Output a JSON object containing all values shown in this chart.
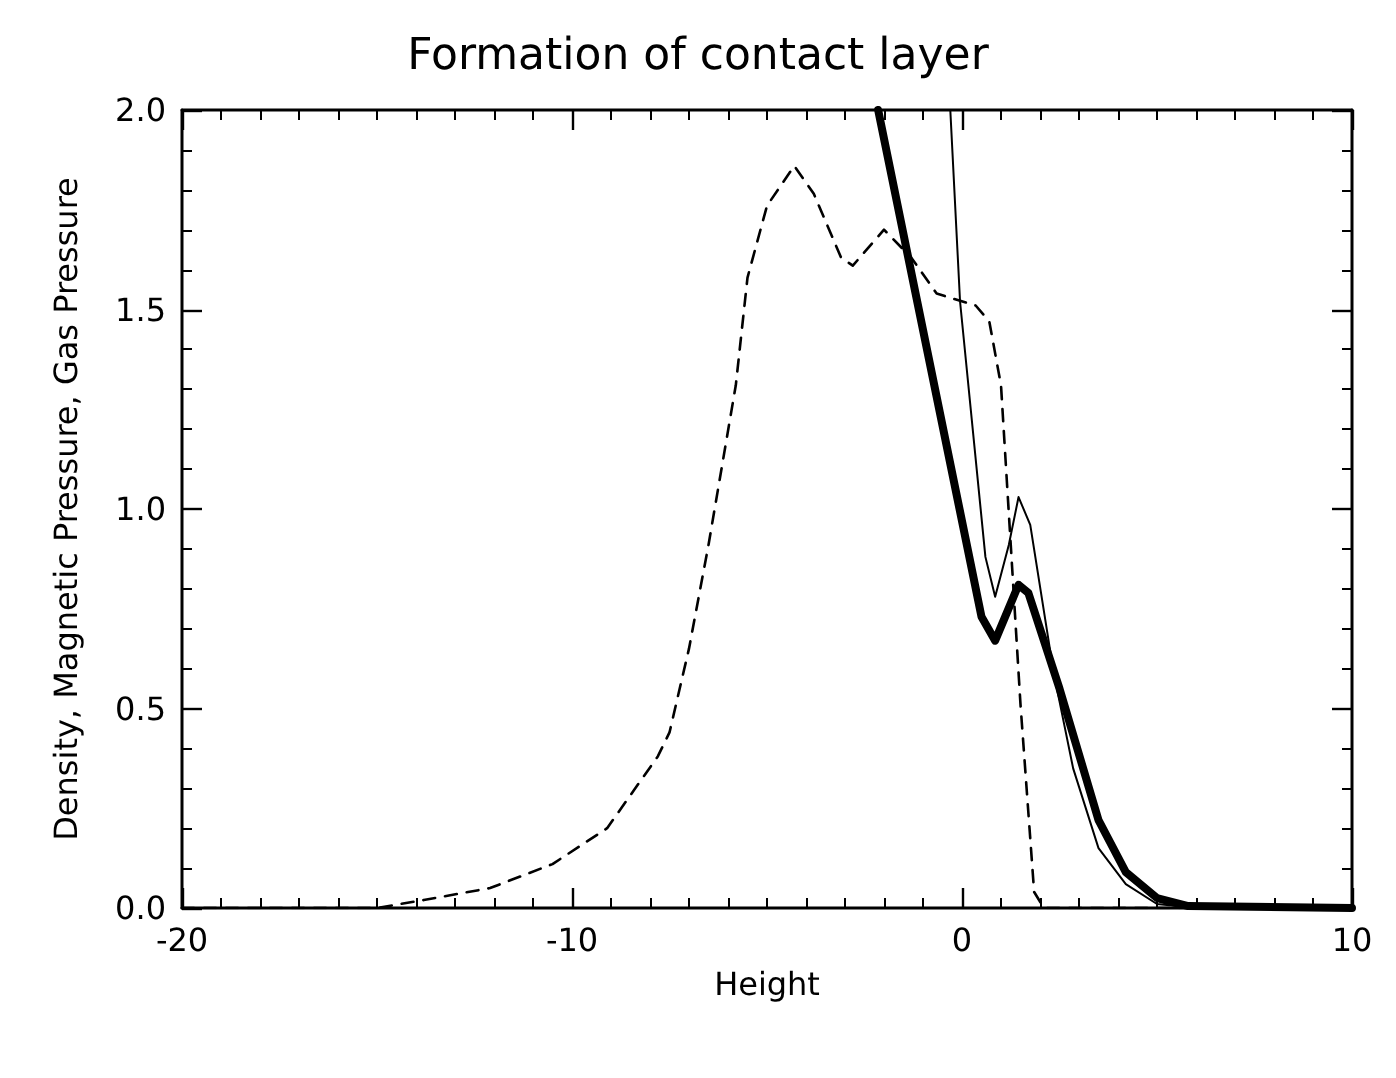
{
  "chart_data": {
    "type": "line",
    "title": "Formation of contact layer",
    "xlabel": "Height",
    "ylabel": "Density, Magnetic Pressure, Gas Pressure",
    "xlim": [
      -20,
      10
    ],
    "xticks": [
      -20,
      -10,
      0,
      10
    ],
    "ylim": [
      0,
      2
    ],
    "yticks": [
      {
        "value": 0,
        "label": "0.0"
      },
      {
        "value": 0.5,
        "label": "0.5"
      },
      {
        "value": 1,
        "label": "1.0"
      },
      {
        "value": 1.5,
        "label": "1.5"
      },
      {
        "value": 2,
        "label": "2.0"
      }
    ],
    "grid": false,
    "marker": "none",
    "series": [
      {
        "color": "#000000",
        "line_style": "dashed",
        "x": [
          -20,
          -15,
          -13.8,
          -12.1,
          -10.5,
          -9.1,
          -7.8,
          -7.5,
          -7.0,
          -6.5,
          -5.8,
          -5.5,
          -5.0,
          -4.3,
          -3.8,
          -3.1,
          -2.8,
          -2.0,
          -1.3,
          -0.65,
          0.35,
          0.7,
          1.0,
          1.25,
          1.5,
          1.85,
          2.1,
          10
        ],
        "values": [
          0,
          0,
          0.02,
          0.05,
          0.11,
          0.2,
          0.38,
          0.44,
          0.65,
          0.91,
          1.31,
          1.58,
          1.76,
          1.86,
          1.79,
          1.63,
          1.61,
          1.7,
          1.63,
          1.54,
          1.51,
          1.47,
          1.31,
          0.91,
          0.51,
          0.04,
          0,
          0
        ]
      },
      {
        "color": "#000000",
        "line_style": "solid",
        "x": [
          -0.3,
          -0.05,
          0.6,
          0.85,
          1.2,
          1.45,
          1.75,
          2.35,
          2.85,
          3.5,
          4.2,
          5.0,
          6.0,
          10
        ],
        "values": [
          2.0,
          1.52,
          0.88,
          0.78,
          0.91,
          1.03,
          0.96,
          0.59,
          0.35,
          0.15,
          0.06,
          0.01,
          0,
          0
        ]
      },
      {
        "color": "#000000",
        "line_style": "solid",
        "x": [
          -2.15,
          0.5,
          0.85,
          1.45,
          1.7,
          2.5,
          3.5,
          4.2,
          5.0,
          5.8,
          10
        ],
        "values": [
          2.0,
          0.73,
          0.67,
          0.81,
          0.79,
          0.55,
          0.22,
          0.09,
          0.025,
          0.005,
          0
        ]
      }
    ]
  }
}
